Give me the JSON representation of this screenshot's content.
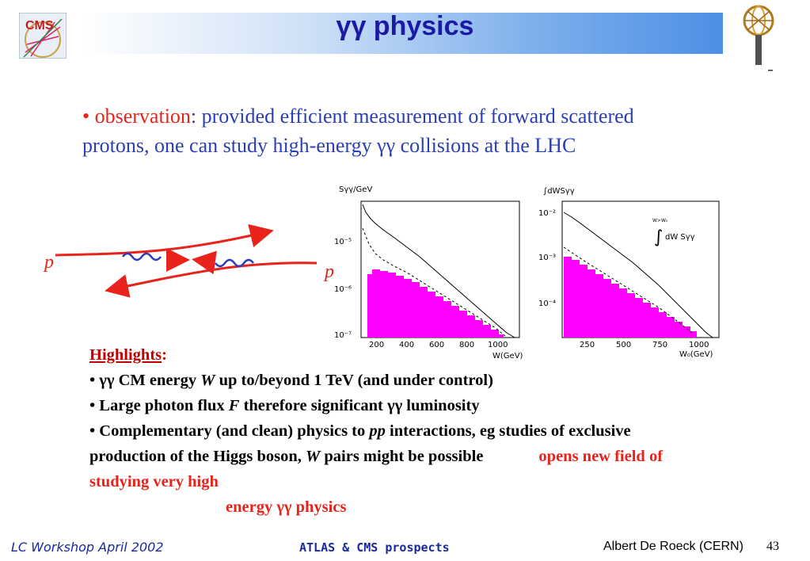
{
  "title": "γγ  physics",
  "observation": {
    "bullet": "•",
    "lead": "observation",
    "text": ": provided efficient measurement of forward scattered protons, one can study high-energy γγ collisions at the LHC"
  },
  "diagram": {
    "label_left": "p",
    "label_right": "p"
  },
  "plot1": {
    "ylabel": "Sγγ/GeV",
    "yticks": [
      "10⁻⁵",
      "10⁻⁶",
      "10⁻⁷"
    ],
    "xticks": [
      "200",
      "400",
      "600",
      "800",
      "1000"
    ],
    "xlabel": "W(GeV)"
  },
  "plot2": {
    "ylabel": "∫dWSγγ",
    "yticks": [
      "10⁻²",
      "10⁻³",
      "10⁻⁴"
    ],
    "xticks": [
      "250",
      "500",
      "750",
      "1000"
    ],
    "xlabel": "W₀(GeV)",
    "integral_upper": "W>W₀",
    "integral_body": "dW Sγγ"
  },
  "highlights": {
    "heading": "Highlights",
    "colon": ":",
    "item1_a": "• γγ CM energy ",
    "item1_b": "W",
    "item1_c": " up to/beyond 1 TeV (and under control)",
    "item2_a": "• Large photon flux ",
    "item2_b": "F",
    "item2_c": " therefore significant γγ luminosity",
    "item3_a": "• Complementary (and clean) physics to ",
    "item3_b": "pp",
    "item3_c": " interactions, eg studies of exclusive production of the Higgs boson, ",
    "item3_d": "W",
    "item3_e": " pairs might be possible",
    "conclusion_1": "opens new field of studying very high",
    "conclusion_2": "energy γγ physics"
  },
  "footer": {
    "left": "LC Workshop  April 2002",
    "middle": "ATLAS & CMS prospects",
    "right": "Albert De Roeck (CERN)",
    "page": "43"
  },
  "logos": {
    "left": "CMS"
  },
  "colors": {
    "title": "#1a1aa6",
    "body": "#2a3fb5",
    "accent": "#e8231c",
    "histogram": "#ff00ff",
    "footer": "#1a2a9a"
  }
}
